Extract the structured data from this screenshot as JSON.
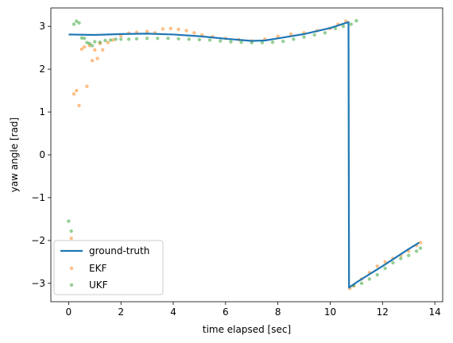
{
  "chart_data": {
    "type": "line",
    "xlabel": "time elapsed [sec]",
    "ylabel": "yaw angle [rad]",
    "xlim": [
      -0.68,
      14.3
    ],
    "ylim": [
      -3.43,
      3.43
    ],
    "xticks": [
      0,
      2,
      4,
      6,
      8,
      10,
      12,
      14
    ],
    "xtick_labels": [
      "0",
      "2",
      "4",
      "6",
      "8",
      "10",
      "12",
      "14"
    ],
    "yticks": [
      -3,
      -2,
      -1,
      0,
      1,
      2,
      3
    ],
    "ytick_labels": [
      "−3",
      "−2",
      "−1",
      "0",
      "1",
      "2",
      "3"
    ],
    "grid": false,
    "legend_position": "lower-left",
    "series": [
      {
        "name": "ground-truth",
        "kind": "line",
        "color": "#1f77b4",
        "x": [
          0,
          1,
          2,
          3,
          4,
          5,
          6,
          7,
          7.5,
          8,
          9,
          10,
          10.7,
          10.72,
          11,
          12,
          13,
          13.4
        ],
        "y": [
          2.81,
          2.8,
          2.82,
          2.83,
          2.81,
          2.77,
          2.71,
          2.66,
          2.67,
          2.72,
          2.82,
          2.96,
          3.1,
          -3.1,
          -2.98,
          -2.6,
          -2.2,
          -2.05
        ]
      },
      {
        "name": "EKF",
        "kind": "scatter",
        "color": "#ff7f0e",
        "x": [
          0.1,
          0.2,
          0.3,
          0.4,
          0.5,
          0.6,
          0.7,
          0.8,
          0.9,
          1.0,
          1.1,
          1.2,
          1.3,
          1.5,
          1.7,
          2.0,
          2.3,
          2.6,
          3.0,
          3.3,
          3.6,
          3.9,
          4.2,
          4.5,
          4.8,
          5.1,
          5.5,
          6.0,
          6.5,
          7.0,
          7.5,
          8.0,
          8.5,
          9.0,
          9.5,
          10.0,
          10.3,
          10.6,
          10.75,
          10.9,
          11.2,
          11.5,
          11.8,
          12.1,
          12.4,
          12.7,
          13.0,
          13.3,
          13.45
        ],
        "y": [
          -1.95,
          1.42,
          1.5,
          1.15,
          2.47,
          2.52,
          1.6,
          2.55,
          2.2,
          2.45,
          2.25,
          2.6,
          2.45,
          2.62,
          2.68,
          2.78,
          2.84,
          2.86,
          2.88,
          2.85,
          2.94,
          2.95,
          2.93,
          2.9,
          2.85,
          2.8,
          2.76,
          2.72,
          2.69,
          2.66,
          2.7,
          2.77,
          2.82,
          2.85,
          2.9,
          2.95,
          3.05,
          3.12,
          -3.12,
          -3.06,
          -2.9,
          -2.75,
          -2.6,
          -2.5,
          -2.42,
          -2.35,
          -2.25,
          -2.12,
          -2.05
        ]
      },
      {
        "name": "UKF",
        "kind": "scatter",
        "color": "#2ca02c",
        "x": [
          0.0,
          0.1,
          0.2,
          0.3,
          0.4,
          0.5,
          0.6,
          0.7,
          0.8,
          0.9,
          1.0,
          1.2,
          1.4,
          1.6,
          1.8,
          2.0,
          2.3,
          2.6,
          3.0,
          3.4,
          3.8,
          4.2,
          4.6,
          5.0,
          5.4,
          5.8,
          6.2,
          6.6,
          7.0,
          7.4,
          7.8,
          8.2,
          8.6,
          9.0,
          9.4,
          9.8,
          10.2,
          10.5,
          10.8,
          11.0,
          10.9,
          11.2,
          11.5,
          11.8,
          12.1,
          12.4,
          12.7,
          13.0,
          13.3,
          13.45
        ],
        "y": [
          -1.55,
          -1.78,
          3.05,
          3.12,
          3.08,
          2.73,
          2.72,
          2.62,
          2.6,
          2.55,
          2.64,
          2.63,
          2.67,
          2.68,
          2.7,
          2.7,
          2.7,
          2.71,
          2.72,
          2.72,
          2.72,
          2.71,
          2.7,
          2.69,
          2.68,
          2.66,
          2.64,
          2.63,
          2.62,
          2.62,
          2.63,
          2.65,
          2.7,
          2.75,
          2.8,
          2.85,
          2.95,
          3.0,
          3.05,
          3.13,
          -3.05,
          -3.0,
          -2.9,
          -2.8,
          -2.65,
          -2.52,
          -2.42,
          -2.35,
          -2.25,
          -2.18
        ]
      }
    ]
  }
}
